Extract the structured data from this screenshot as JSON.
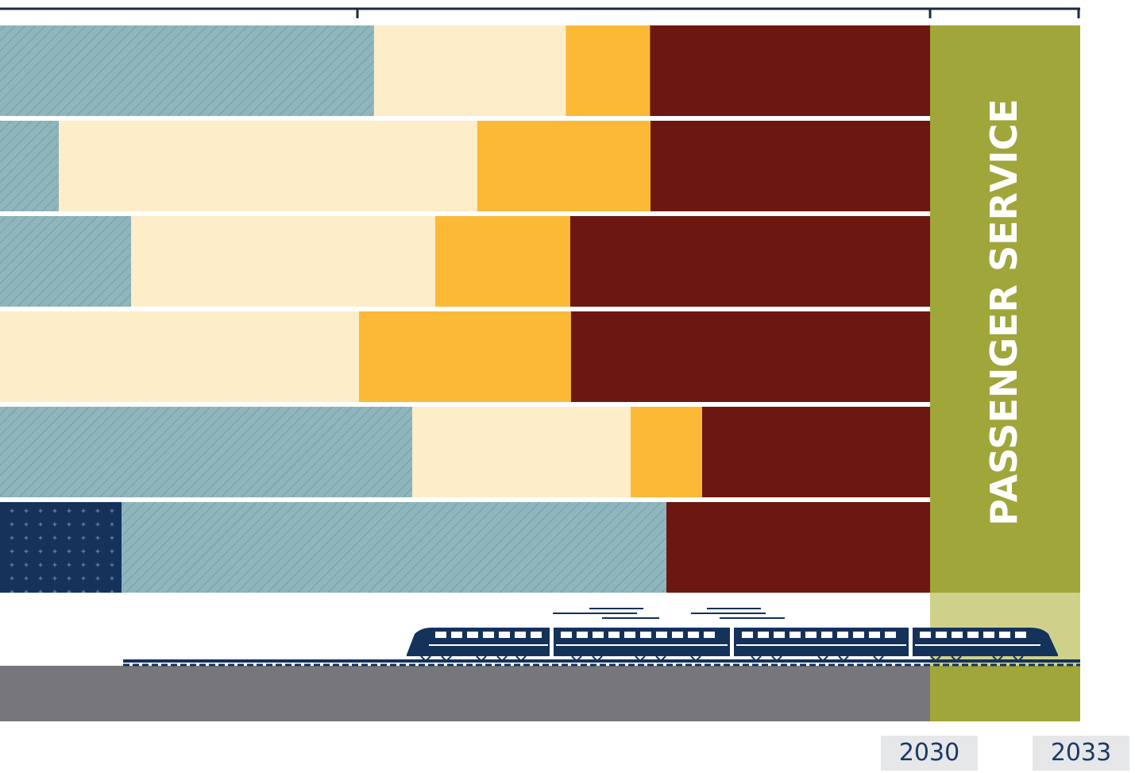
{
  "colors": {
    "hatch_blue": "#8fb5bd",
    "hatch_line": "#6f9aa4",
    "cream": "#fdedc8",
    "gold": "#fbb936",
    "maroon": "#6c1710",
    "navy_dots": "#14325a",
    "olive": "#a0a63a",
    "olive_light": "#cfd18a",
    "gray_ground": "#77777b",
    "axis": "#1a2a40",
    "train": "#14325a",
    "year_box": "#e6e7e8",
    "year_text": "#1b3a66"
  },
  "chart_data": {
    "type": "bar",
    "orientation": "horizontal-stacked",
    "axis_ticks": [
      "2030",
      "2033"
    ],
    "rows": [
      {
        "segments": [
          {
            "pattern": "hatch_blue",
            "start": 0,
            "end": 0.3295
          },
          {
            "pattern": "cream",
            "start": 0.3295,
            "end": 0.4985
          },
          {
            "pattern": "gold",
            "start": 0.4985,
            "end": 0.5727
          },
          {
            "pattern": "maroon",
            "start": 0.5727,
            "end": 0.8197
          }
        ]
      },
      {
        "segments": [
          {
            "pattern": "hatch_blue",
            "start": 0,
            "end": 0.0518
          },
          {
            "pattern": "cream",
            "start": 0.0518,
            "end": 0.4205
          },
          {
            "pattern": "gold",
            "start": 0.4205,
            "end": 0.5731
          },
          {
            "pattern": "maroon",
            "start": 0.5731,
            "end": 0.8197
          }
        ]
      },
      {
        "segments": [
          {
            "pattern": "hatch_blue",
            "start": 0,
            "end": 0.1155
          },
          {
            "pattern": "cream",
            "start": 0.1155,
            "end": 0.3835
          },
          {
            "pattern": "gold",
            "start": 0.3835,
            "end": 0.5024
          },
          {
            "pattern": "maroon",
            "start": 0.5024,
            "end": 0.8197
          }
        ]
      },
      {
        "segments": [
          {
            "pattern": "cream",
            "start": 0,
            "end": 0.3163
          },
          {
            "pattern": "gold",
            "start": 0.3163,
            "end": 0.5031
          },
          {
            "pattern": "maroon",
            "start": 0.5031,
            "end": 0.8197
          }
        ]
      },
      {
        "segments": [
          {
            "pattern": "hatch_blue",
            "start": 0,
            "end": 0.3632
          },
          {
            "pattern": "cream",
            "start": 0.3632,
            "end": 0.5556
          },
          {
            "pattern": "gold",
            "start": 0.5556,
            "end": 0.6186
          },
          {
            "pattern": "maroon",
            "start": 0.6186,
            "end": 0.8197
          }
        ]
      },
      {
        "segments": [
          {
            "pattern": "navy_dots",
            "start": 0,
            "end": 0.1071
          },
          {
            "pattern": "hatch_blue",
            "start": 0.1071,
            "end": 0.5871
          },
          {
            "pattern": "maroon",
            "start": 0.5871,
            "end": 0.8197
          }
        ]
      }
    ],
    "final_phase": {
      "label": "PASSENGER SERVICE",
      "start": 0.8197,
      "end": 0.9517
    }
  }
}
